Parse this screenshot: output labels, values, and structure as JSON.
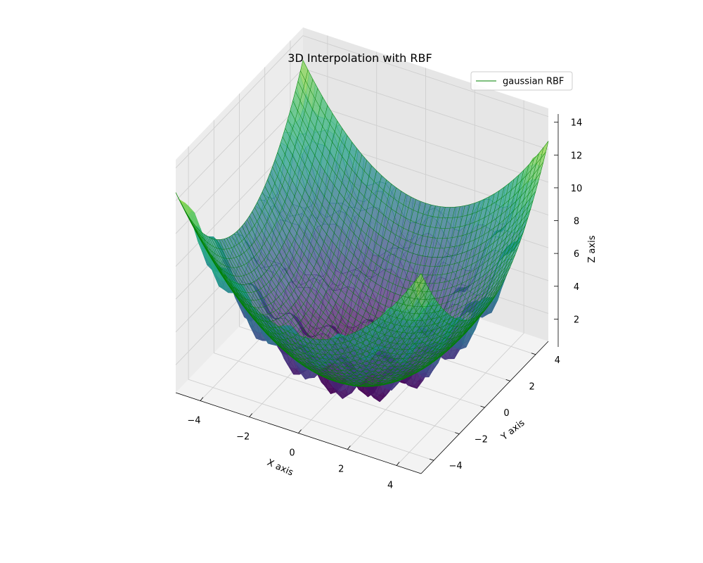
{
  "chart_data": {
    "type": "surface3d",
    "title": "3D Interpolation with RBF",
    "xlabel": "X axis",
    "ylabel": "Y axis",
    "zlabel": "Z axis",
    "xlim": [
      -5,
      5
    ],
    "ylim": [
      -5,
      5
    ],
    "zlim": [
      0.3,
      14.5
    ],
    "x_ticks": [
      -4,
      -2,
      0,
      2,
      4
    ],
    "y_ticks": [
      -4,
      -2,
      0,
      2,
      4
    ],
    "z_ticks": [
      2,
      4,
      6,
      8,
      10,
      12,
      14
    ],
    "grid": true,
    "colormap": "viridis",
    "legend": {
      "position": "top-right",
      "entries": [
        {
          "label": "gaussian RBF",
          "color": "#008000"
        }
      ]
    },
    "series": [
      {
        "name": "gaussian RBF",
        "kind": "wireframe",
        "color": "#008000",
        "function": "0.25*(x^2+y^2)",
        "range": [
          -5,
          5
        ]
      },
      {
        "kind": "surface",
        "colormap": "viridis",
        "function": "0.25*(x^2+y^2) + sin(pi*x)*sin(pi*y)",
        "range": [
          -5,
          5
        ]
      }
    ]
  }
}
